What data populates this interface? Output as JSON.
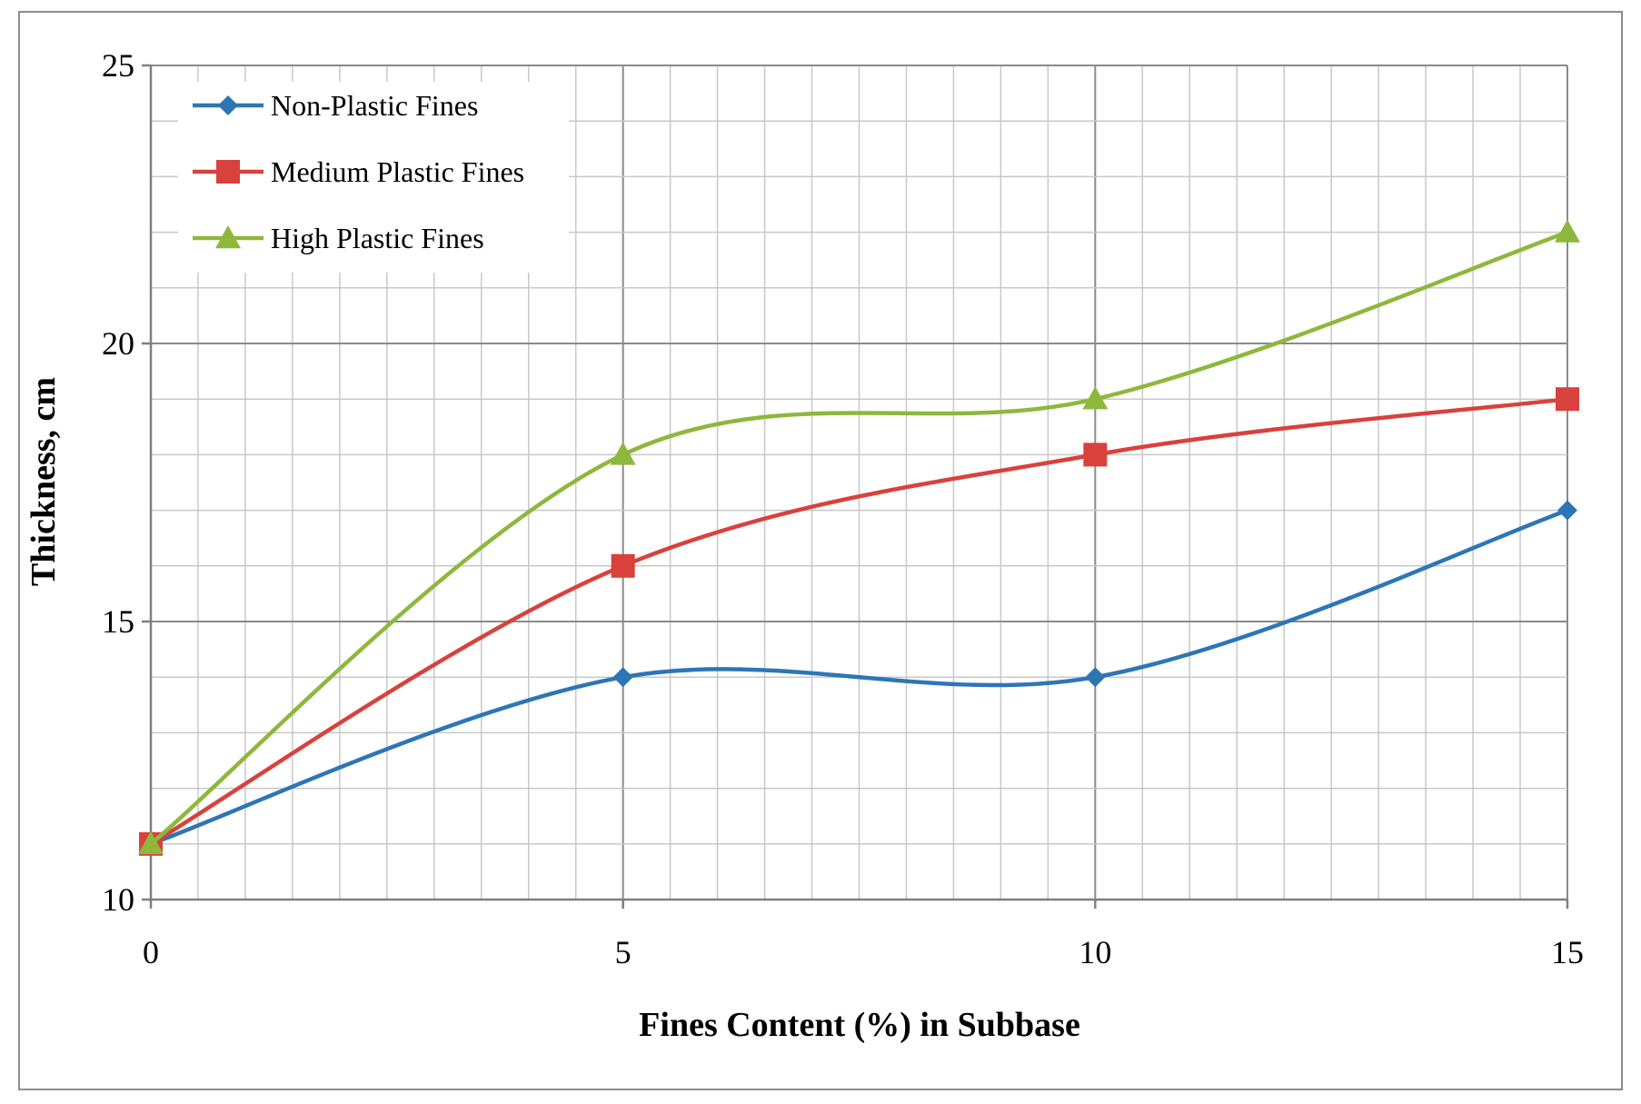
{
  "chart_data": {
    "type": "line",
    "title": "",
    "xlabel": "Fines Content (%) in Subbase",
    "ylabel": "Thickness, cm",
    "x": [
      0,
      5,
      10,
      15
    ],
    "xlim": [
      0,
      15
    ],
    "ylim": [
      10,
      25
    ],
    "x_ticks": [
      0,
      5,
      10,
      15
    ],
    "y_ticks": [
      10,
      15,
      20,
      25
    ],
    "x_minor_step": 0.5,
    "y_minor_step": 1,
    "grid": true,
    "smooth": true,
    "legend_position": "top-left",
    "series": [
      {
        "name": "Non-Plastic Fines",
        "values": [
          11,
          14,
          14,
          17
        ],
        "color": "#2E75B6",
        "marker": "diamond"
      },
      {
        "name": "Medium Plastic Fines",
        "values": [
          11,
          16,
          18,
          19
        ],
        "color": "#D9413D",
        "marker": "square"
      },
      {
        "name": "High Plastic Fines",
        "values": [
          11,
          18,
          19,
          22
        ],
        "color": "#8DB83C",
        "marker": "triangle"
      }
    ]
  }
}
